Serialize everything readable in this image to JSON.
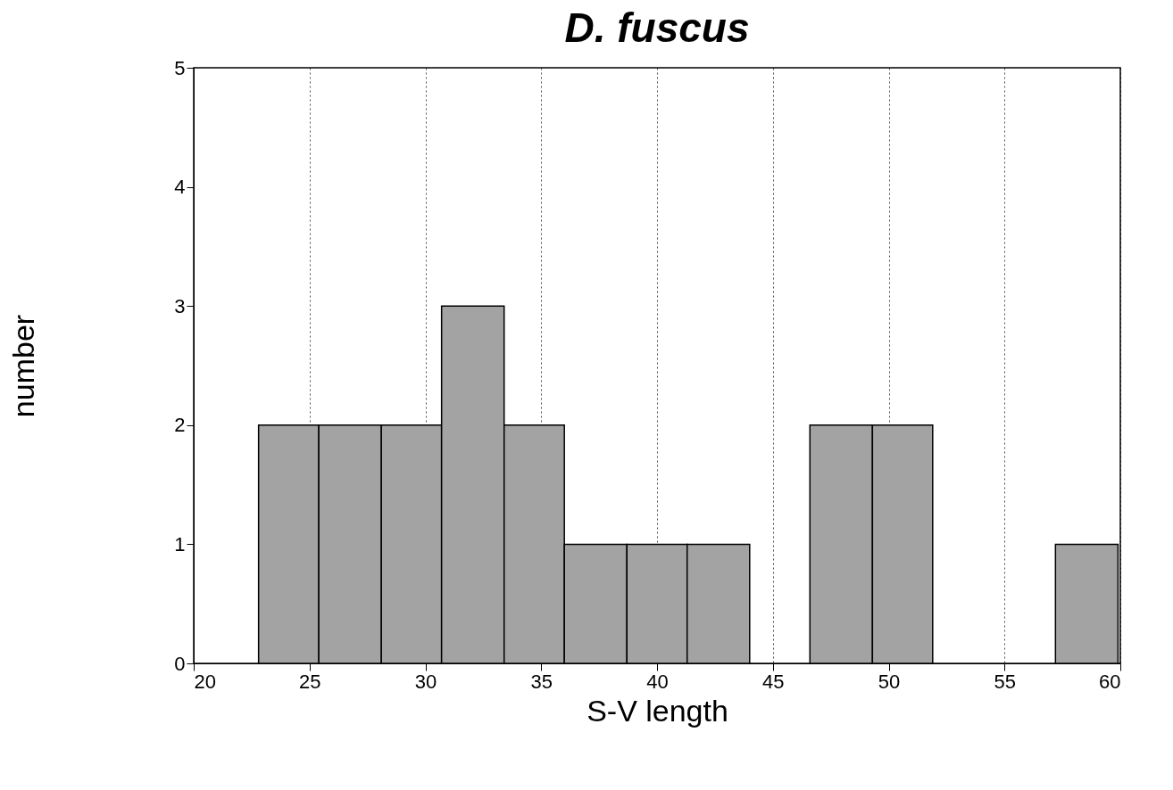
{
  "chart_data": {
    "type": "histogram",
    "title": "D. fuscus",
    "xlabel": "S-V length",
    "ylabel": "number",
    "bins": [
      22.8,
      25.4,
      28.1,
      30.7,
      33.4,
      36.0,
      38.7,
      41.3,
      44.0,
      46.6,
      49.3,
      51.9,
      57.2,
      59.9
    ],
    "values": [
      2,
      2,
      2,
      3,
      2,
      1,
      1,
      1,
      0,
      2,
      2,
      0,
      1
    ],
    "color": "#a3a3a3",
    "xlim": [
      20,
      60
    ],
    "xticks": [
      20,
      25,
      30,
      35,
      40,
      45,
      50,
      55,
      60
    ],
    "ylim": [
      0,
      5
    ],
    "yticks": [
      0,
      1,
      2,
      3,
      4,
      5
    ],
    "grid": "x"
  }
}
